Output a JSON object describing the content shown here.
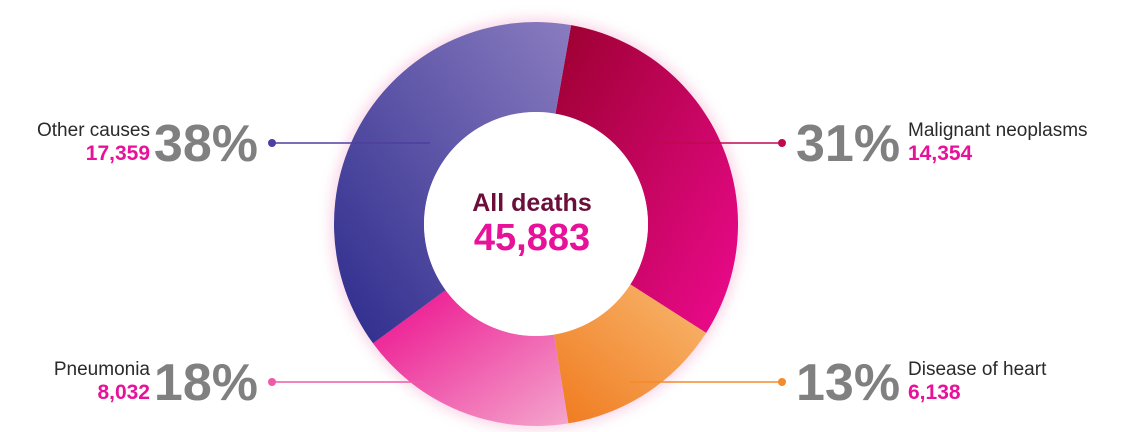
{
  "chart_data": {
    "type": "pie",
    "variant": "donut",
    "center_title": "All deaths",
    "center_total": "45,883",
    "slices": [
      {
        "name": "Malignant neoplasms",
        "percent_label": "31%",
        "value": 14354,
        "count_label": "14,354",
        "color": "#c0084f"
      },
      {
        "name": "Disease of heart",
        "percent_label": "13%",
        "value": 6138,
        "count_label": "6,138",
        "color": "#f58a2a"
      },
      {
        "name": "Pneumonia",
        "percent_label": "18%",
        "value": 8032,
        "count_label": "8,032",
        "color": "#ee5aa7"
      },
      {
        "name": "Other causes",
        "percent_label": "38%",
        "value": 17359,
        "count_label": "17,359",
        "color": "#4e3f9e"
      }
    ]
  }
}
